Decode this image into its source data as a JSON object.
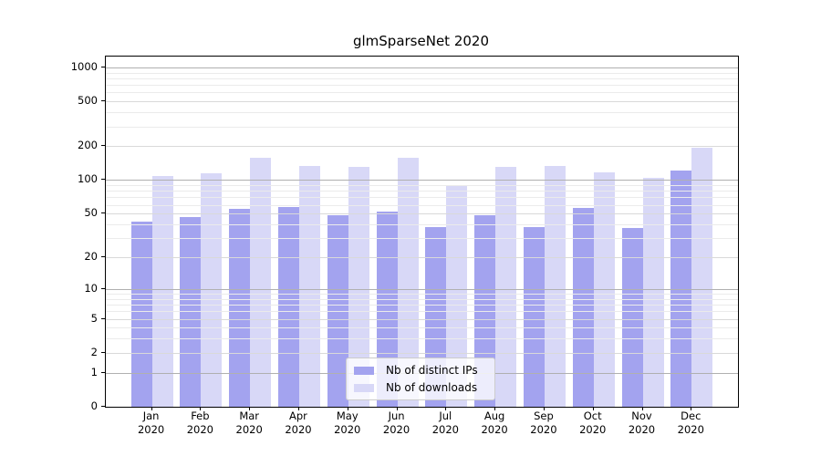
{
  "title": "glmSparseNet 2020",
  "legend": {
    "position": "lower center",
    "items": [
      {
        "label": "Nb of distinct IPs",
        "color": "#a3a3ef"
      },
      {
        "label": "Nb of downloads",
        "color": "#d8d8f7"
      }
    ]
  },
  "colors": {
    "background": "#ffffff",
    "spine": "#000000",
    "grid_major": "#b0b0b0",
    "grid_mid": "#d9d9d9",
    "grid_minor": "#ebebeb"
  },
  "chart_data": {
    "type": "bar",
    "title": "glmSparseNet 2020",
    "xlabel": "",
    "ylabel": "",
    "yscale": "log1p",
    "grid": "horizontal",
    "legend_position": "lower center",
    "ylim": [
      0,
      1200
    ],
    "yticks": [
      0,
      1,
      2,
      5,
      10,
      20,
      50,
      100,
      200,
      500,
      1000
    ],
    "ytick_labels": [
      "0",
      "1",
      "2",
      "5",
      "10",
      "20",
      "50",
      "100",
      "200",
      "500",
      "1000"
    ],
    "categories": [
      {
        "month": "Jan",
        "year": "2020"
      },
      {
        "month": "Feb",
        "year": "2020"
      },
      {
        "month": "Mar",
        "year": "2020"
      },
      {
        "month": "Apr",
        "year": "2020"
      },
      {
        "month": "May",
        "year": "2020"
      },
      {
        "month": "Jun",
        "year": "2020"
      },
      {
        "month": "Jul",
        "year": "2020"
      },
      {
        "month": "Aug",
        "year": "2020"
      },
      {
        "month": "Sep",
        "year": "2020"
      },
      {
        "month": "Oct",
        "year": "2020"
      },
      {
        "month": "Nov",
        "year": "2020"
      },
      {
        "month": "Dec",
        "year": "2020"
      }
    ],
    "series": [
      {
        "name": "Nb of distinct IPs",
        "color": "#a3a3ef",
        "values": [
          42,
          47,
          55,
          57,
          48,
          52,
          38,
          48,
          38,
          56,
          37,
          122
        ]
      },
      {
        "name": "Nb of downloads",
        "color": "#d8d8f7",
        "values": [
          108,
          116,
          157,
          134,
          130,
          157,
          88,
          130,
          134,
          118,
          104,
          195
        ]
      }
    ]
  }
}
